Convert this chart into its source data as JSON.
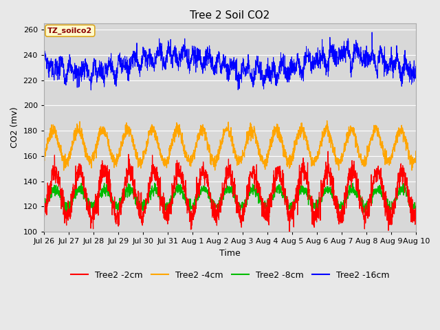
{
  "title": "Tree 2 Soil CO2",
  "ylabel": "CO2 (mv)",
  "xlabel": "Time",
  "annotation": "TZ_soilco2",
  "ylim": [
    100,
    265
  ],
  "yticks": [
    100,
    120,
    140,
    160,
    180,
    200,
    220,
    240,
    260
  ],
  "x_labels": [
    "Jul 26",
    "Jul 27",
    "Jul 28",
    "Jul 29",
    "Jul 30",
    "Jul 31",
    "Aug 1",
    "Aug 2",
    "Aug 3",
    "Aug 4",
    "Aug 5",
    "Aug 6",
    "Aug 7",
    "Aug 8",
    "Aug 9",
    "Aug 10"
  ],
  "series": {
    "Tree2 -2cm": {
      "color": "#FF0000"
    },
    "Tree2 -4cm": {
      "color": "#FFA500"
    },
    "Tree2 -8cm": {
      "color": "#00BB00"
    },
    "Tree2 -16cm": {
      "color": "#0000FF"
    }
  },
  "bg_color": "#E8E8E8",
  "plot_bg": "#D8D8D8",
  "grid_color": "#FFFFFF",
  "title_fontsize": 11,
  "label_fontsize": 9,
  "tick_fontsize": 8,
  "legend_fontsize": 9,
  "n_days": 15,
  "pts_per_day": 144
}
